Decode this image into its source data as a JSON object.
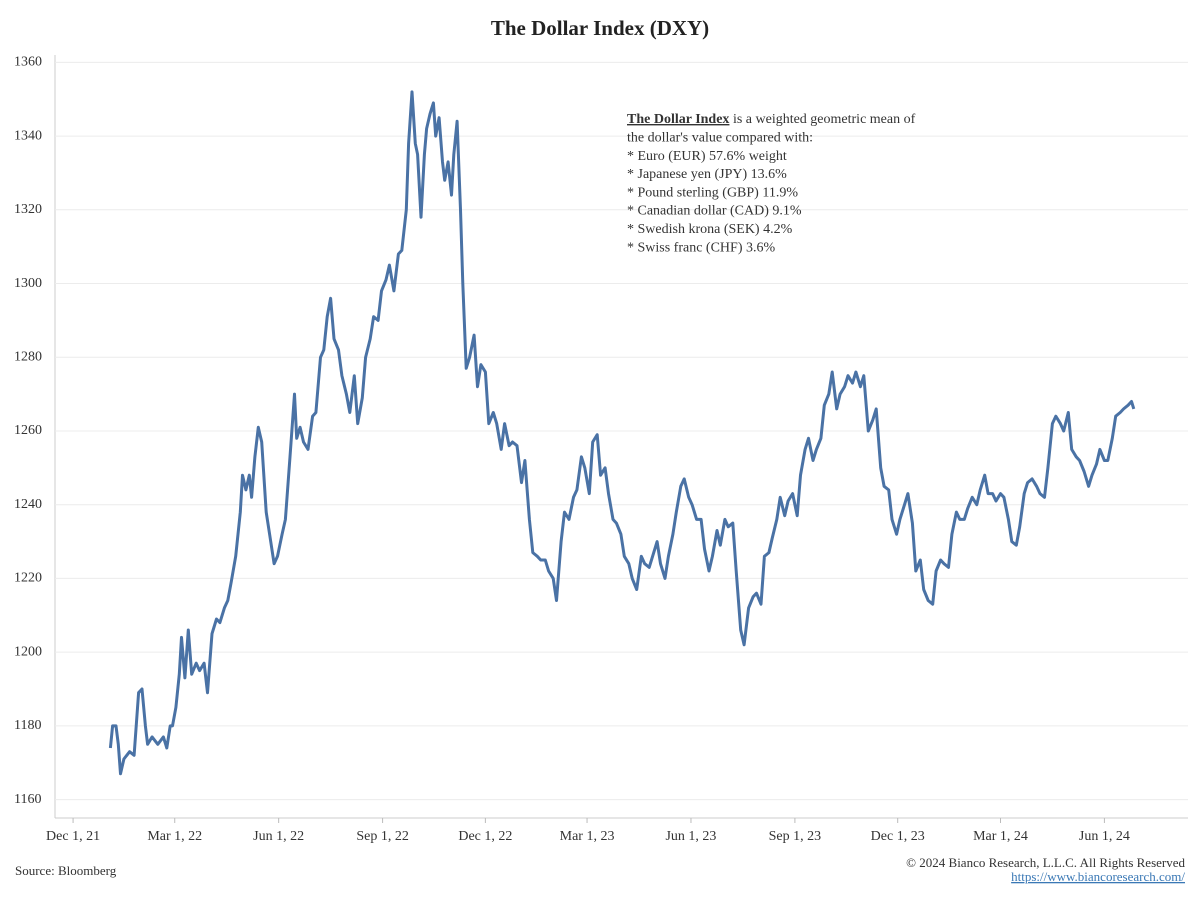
{
  "chart_data": {
    "type": "line",
    "title": "The Dollar Index (DXY)",
    "x": [
      "2022-01-03",
      "2022-01-05",
      "2022-01-08",
      "2022-01-10",
      "2022-01-12",
      "2022-01-15",
      "2022-01-20",
      "2022-01-24",
      "2022-01-28",
      "2022-01-31",
      "2022-02-03",
      "2022-02-05",
      "2022-02-09",
      "2022-02-14",
      "2022-02-19",
      "2022-02-22",
      "2022-02-25",
      "2022-02-27",
      "2022-03-02",
      "2022-03-05",
      "2022-03-07",
      "2022-03-10",
      "2022-03-13",
      "2022-03-16",
      "2022-03-20",
      "2022-03-23",
      "2022-03-27",
      "2022-03-30",
      "2022-04-03",
      "2022-04-07",
      "2022-04-10",
      "2022-04-14",
      "2022-04-17",
      "2022-04-20",
      "2022-04-24",
      "2022-04-28",
      "2022-04-30",
      "2022-05-03",
      "2022-05-06",
      "2022-05-08",
      "2022-05-11",
      "2022-05-14",
      "2022-05-17",
      "2022-05-21",
      "2022-05-24",
      "2022-05-28",
      "2022-05-31",
      "2022-06-04",
      "2022-06-07",
      "2022-06-11",
      "2022-06-15",
      "2022-06-17",
      "2022-06-20",
      "2022-06-23",
      "2022-06-27",
      "2022-07-01",
      "2022-07-04",
      "2022-07-08",
      "2022-07-11",
      "2022-07-14",
      "2022-07-17",
      "2022-07-20",
      "2022-07-24",
      "2022-07-27",
      "2022-07-31",
      "2022-08-03",
      "2022-08-07",
      "2022-08-10",
      "2022-08-14",
      "2022-08-17",
      "2022-08-21",
      "2022-08-24",
      "2022-08-28",
      "2022-08-31",
      "2022-09-04",
      "2022-09-07",
      "2022-09-11",
      "2022-09-15",
      "2022-09-18",
      "2022-09-22",
      "2022-09-24",
      "2022-09-27",
      "2022-09-30",
      "2022-10-02",
      "2022-10-05",
      "2022-10-08",
      "2022-10-10",
      "2022-10-13",
      "2022-10-16",
      "2022-10-18",
      "2022-10-21",
      "2022-10-24",
      "2022-10-26",
      "2022-10-29",
      "2022-11-01",
      "2022-11-03",
      "2022-11-06",
      "2022-11-09",
      "2022-11-11",
      "2022-11-14",
      "2022-11-17",
      "2022-11-21",
      "2022-11-24",
      "2022-11-27",
      "2022-12-01",
      "2022-12-04",
      "2022-12-08",
      "2022-12-11",
      "2022-12-15",
      "2022-12-18",
      "2022-12-22",
      "2022-12-25",
      "2022-12-29",
      "2023-01-02",
      "2023-01-05",
      "2023-01-09",
      "2023-01-12",
      "2023-01-16",
      "2023-01-19",
      "2023-01-23",
      "2023-01-26",
      "2023-01-30",
      "2023-02-02",
      "2023-02-06",
      "2023-02-09",
      "2023-02-13",
      "2023-02-17",
      "2023-02-20",
      "2023-02-24",
      "2023-02-27",
      "2023-03-03",
      "2023-03-06",
      "2023-03-10",
      "2023-03-13",
      "2023-03-17",
      "2023-03-20",
      "2023-03-24",
      "2023-03-27",
      "2023-03-31",
      "2023-04-03",
      "2023-04-07",
      "2023-04-10",
      "2023-04-14",
      "2023-04-18",
      "2023-04-21",
      "2023-04-25",
      "2023-04-28",
      "2023-05-02",
      "2023-05-05",
      "2023-05-09",
      "2023-05-12",
      "2023-05-16",
      "2023-05-19",
      "2023-05-23",
      "2023-05-26",
      "2023-05-30",
      "2023-06-02",
      "2023-06-06",
      "2023-06-10",
      "2023-06-13",
      "2023-06-17",
      "2023-06-20",
      "2023-06-24",
      "2023-06-27",
      "2023-07-01",
      "2023-07-04",
      "2023-07-08",
      "2023-07-11",
      "2023-07-15",
      "2023-07-18",
      "2023-07-22",
      "2023-07-26",
      "2023-07-29",
      "2023-08-02",
      "2023-08-05",
      "2023-08-09",
      "2023-08-12",
      "2023-08-16",
      "2023-08-19",
      "2023-08-23",
      "2023-08-26",
      "2023-08-30",
      "2023-09-03",
      "2023-09-06",
      "2023-09-10",
      "2023-09-13",
      "2023-09-17",
      "2023-09-20",
      "2023-09-24",
      "2023-09-27",
      "2023-10-01",
      "2023-10-04",
      "2023-10-08",
      "2023-10-11",
      "2023-10-15",
      "2023-10-18",
      "2023-10-22",
      "2023-10-25",
      "2023-10-29",
      "2023-11-01",
      "2023-11-05",
      "2023-11-09",
      "2023-11-12",
      "2023-11-16",
      "2023-11-19",
      "2023-11-23",
      "2023-11-26",
      "2023-11-30",
      "2023-12-03",
      "2023-12-07",
      "2023-12-10",
      "2023-12-14",
      "2023-12-17",
      "2023-12-21",
      "2023-12-24",
      "2023-12-28",
      "2024-01-01",
      "2024-01-04",
      "2024-01-08",
      "2024-01-11",
      "2024-01-15",
      "2024-01-18",
      "2024-01-22",
      "2024-01-25",
      "2024-01-29",
      "2024-02-01",
      "2024-02-05",
      "2024-02-09",
      "2024-02-12",
      "2024-02-16",
      "2024-02-19",
      "2024-02-23",
      "2024-02-26",
      "2024-03-01",
      "2024-03-04",
      "2024-03-08",
      "2024-03-11",
      "2024-03-15",
      "2024-03-18",
      "2024-03-22",
      "2024-03-25",
      "2024-03-29",
      "2024-04-02",
      "2024-04-05",
      "2024-04-09",
      "2024-04-12",
      "2024-04-16",
      "2024-04-19",
      "2024-04-23",
      "2024-04-26",
      "2024-04-30",
      "2024-05-03",
      "2024-05-07",
      "2024-05-10",
      "2024-05-14",
      "2024-05-18",
      "2024-05-21",
      "2024-05-25",
      "2024-05-28",
      "2024-06-01",
      "2024-06-04",
      "2024-06-08",
      "2024-06-11",
      "2024-06-15",
      "2024-06-18",
      "2024-06-22",
      "2024-06-25",
      "2024-06-27"
    ],
    "values": [
      1174,
      1180,
      1180,
      1175,
      1167,
      1171,
      1173,
      1172,
      1189,
      1190,
      1180,
      1175,
      1177,
      1175,
      1177,
      1174,
      1180,
      1180,
      1185,
      1194,
      1204,
      1193,
      1206,
      1194,
      1197,
      1195,
      1197,
      1189,
      1205,
      1209,
      1208,
      1212,
      1214,
      1219,
      1226,
      1238,
      1248,
      1244,
      1248,
      1242,
      1253,
      1261,
      1257,
      1238,
      1232,
      1224,
      1226,
      1232,
      1236,
      1253,
      1270,
      1258,
      1261,
      1257,
      1255,
      1264,
      1265,
      1280,
      1282,
      1291,
      1296,
      1285,
      1282,
      1275,
      1270,
      1265,
      1275,
      1262,
      1269,
      1280,
      1285,
      1291,
      1290,
      1298,
      1301,
      1305,
      1298,
      1308,
      1309,
      1320,
      1338,
      1352,
      1338,
      1335,
      1318,
      1335,
      1342,
      1346,
      1349,
      1340,
      1345,
      1333,
      1328,
      1333,
      1324,
      1335,
      1344,
      1320,
      1300,
      1277,
      1280,
      1286,
      1272,
      1278,
      1276,
      1262,
      1265,
      1262,
      1255,
      1262,
      1256,
      1257,
      1256,
      1246,
      1252,
      1236,
      1227,
      1226,
      1225,
      1225,
      1222,
      1220,
      1214,
      1230,
      1238,
      1236,
      1242,
      1244,
      1253,
      1250,
      1243,
      1257,
      1259,
      1248,
      1250,
      1243,
      1236,
      1235,
      1232,
      1226,
      1224,
      1220,
      1217,
      1226,
      1224,
      1223,
      1226,
      1230,
      1224,
      1220,
      1226,
      1232,
      1238,
      1245,
      1247,
      1242,
      1240,
      1236,
      1236,
      1228,
      1222,
      1226,
      1233,
      1229,
      1236,
      1234,
      1235,
      1222,
      1206,
      1202,
      1212,
      1215,
      1216,
      1213,
      1226,
      1227,
      1231,
      1236,
      1242,
      1237,
      1241,
      1243,
      1237,
      1248,
      1255,
      1258,
      1252,
      1255,
      1258,
      1267,
      1270,
      1276,
      1266,
      1270,
      1272,
      1275,
      1273,
      1276,
      1272,
      1275,
      1260,
      1263,
      1266,
      1250,
      1245,
      1244,
      1236,
      1232,
      1236,
      1240,
      1243,
      1235,
      1222,
      1225,
      1217,
      1214,
      1213,
      1222,
      1225,
      1224,
      1223,
      1232,
      1238,
      1236,
      1236,
      1239,
      1242,
      1240,
      1244,
      1248,
      1243,
      1243,
      1241,
      1243,
      1242,
      1236,
      1230,
      1229,
      1234,
      1243,
      1246,
      1247,
      1245,
      1243,
      1242,
      1250,
      1262,
      1264,
      1262,
      1260,
      1265,
      1255,
      1253,
      1252,
      1249,
      1245,
      1248,
      1251,
      1255,
      1252,
      1252,
      1258,
      1264,
      1265,
      1266,
      1267,
      1268,
      1266
    ],
    "color": "#4a72a5",
    "xlim": [
      "2021-11-15",
      "2024-08-14"
    ],
    "xticks": [
      {
        "value": "2021-12-01",
        "label": "Dec 1, 21"
      },
      {
        "value": "2022-03-01",
        "label": "Mar 1, 22"
      },
      {
        "value": "2022-06-01",
        "label": "Jun 1, 22"
      },
      {
        "value": "2022-09-01",
        "label": "Sep 1, 22"
      },
      {
        "value": "2022-12-01",
        "label": "Dec 1, 22"
      },
      {
        "value": "2023-03-01",
        "label": "Mar 1, 23"
      },
      {
        "value": "2023-06-01",
        "label": "Jun 1, 23"
      },
      {
        "value": "2023-09-01",
        "label": "Sep 1, 23"
      },
      {
        "value": "2023-12-01",
        "label": "Dec 1, 23"
      },
      {
        "value": "2024-03-01",
        "label": "Mar 1, 24"
      },
      {
        "value": "2024-06-01",
        "label": "Jun 1, 24"
      }
    ],
    "ylim": [
      1155,
      1362
    ],
    "yticks": [
      1160,
      1180,
      1200,
      1220,
      1240,
      1260,
      1280,
      1300,
      1320,
      1340,
      1360
    ],
    "grid": true,
    "annotation": {
      "title": "The Dollar Index",
      "lines": [
        " is a weighted geometric mean of",
        "the dollar's value compared with:",
        "* Euro (EUR) 57.6% weight",
        "* Japanese yen (JPY) 13.6%",
        "* Pound sterling (GBP) 11.9%",
        "* Canadian dollar (CAD) 9.1%",
        "* Swedish krona (SEK) 4.2%",
        "* Swiss franc (CHF) 3.6%"
      ]
    },
    "source": "Source: Bloomberg",
    "copyright": "© 2024 Bianco Research, L.L.C. All Rights Reserved",
    "url": "https://www.biancoresearch.com/"
  }
}
